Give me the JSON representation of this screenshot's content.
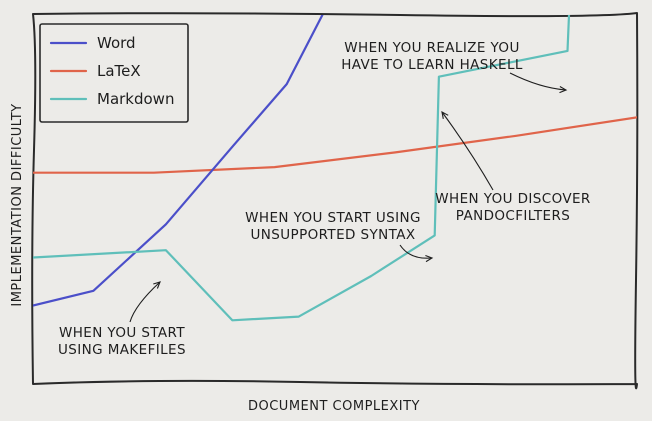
{
  "chart_data": {
    "type": "line",
    "title": "",
    "xlabel": "DOCUMENT COMPLEXITY",
    "ylabel": "IMPLEMENTATION DIFFICULTY",
    "xlim": [
      0,
      100
    ],
    "ylim": [
      0,
      100
    ],
    "grid": false,
    "legend_position": "top-left",
    "series": [
      {
        "name": "Word",
        "color": "#4b4fc9",
        "points": [
          [
            0,
            21
          ],
          [
            10,
            25
          ],
          [
            22,
            43
          ],
          [
            33,
            64
          ],
          [
            42,
            81
          ],
          [
            48,
            100
          ]
        ]
      },
      {
        "name": "LaTeX",
        "color": "#e0644a",
        "points": [
          [
            0,
            57
          ],
          [
            20,
            57
          ],
          [
            40,
            58.5
          ],
          [
            60,
            62.5
          ],
          [
            80,
            67
          ],
          [
            100,
            72
          ]
        ]
      },
      {
        "name": "Markdown",
        "color": "#5fbfba",
        "points": [
          [
            0,
            34
          ],
          [
            22,
            36
          ],
          [
            33,
            17
          ],
          [
            44,
            18
          ],
          [
            56,
            29
          ],
          [
            66.5,
            40
          ],
          [
            67.2,
            83
          ],
          [
            88.5,
            90
          ],
          [
            89,
            110
          ]
        ]
      }
    ],
    "annotations": [
      {
        "lines": [
          "WHEN YOU START",
          "USING MAKEFILES"
        ],
        "x": 21,
        "y": 35
      },
      {
        "lines": [
          "WHEN YOU START USING",
          "UNSUPPORTED SYNTAX"
        ],
        "x": 66.5,
        "y": 40
      },
      {
        "lines": [
          "WHEN YOU DISCOVER",
          "PANDOCFILTERS"
        ],
        "x": 68,
        "y": 83
      },
      {
        "lines": [
          "WHEN YOU REALIZE YOU",
          "HAVE TO LEARN HASKELL"
        ],
        "x": 88.5,
        "y": 90
      }
    ]
  }
}
